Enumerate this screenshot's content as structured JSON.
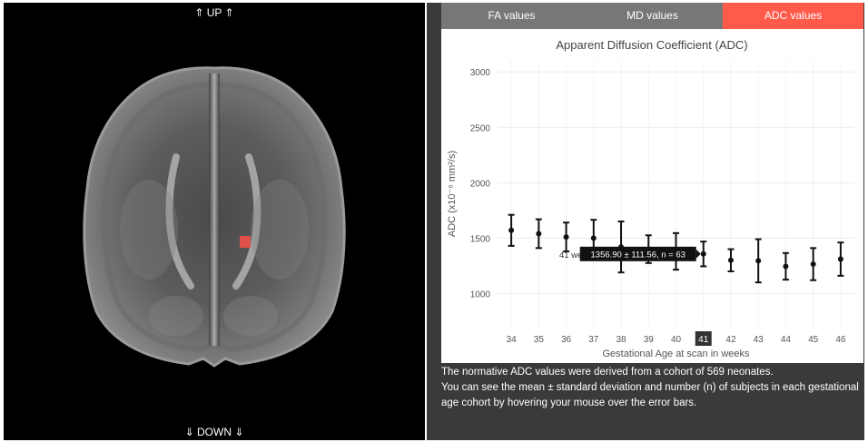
{
  "viewer": {
    "up_label": "⇑ UP ⇑",
    "down_label": "⇓ DOWN ⇓",
    "marker_color": "#e0504a"
  },
  "tabs": [
    {
      "label": "FA values",
      "active": false
    },
    {
      "label": "MD values",
      "active": false
    },
    {
      "label": "ADC values",
      "active": true
    }
  ],
  "colors": {
    "active_tab": "#ff5a4a",
    "inactive_tab": "#777777",
    "panel_bg": "#3a3a3a"
  },
  "chart_data": {
    "type": "scatter",
    "title": "Apparent Diffusion Coefficient (ADC)",
    "xlabel": "Gestational Age at scan in weeks",
    "ylabel": "ADC (x10⁻⁶ mm²/s)",
    "ylim": [
      700,
      3100
    ],
    "yticks": [
      1000,
      1500,
      2000,
      2500,
      3000
    ],
    "x": [
      34,
      35,
      36,
      37,
      38,
      39,
      40,
      41,
      42,
      43,
      44,
      45,
      46
    ],
    "mean": [
      1570,
      1540,
      1510,
      1500,
      1420,
      1400,
      1380,
      1356.9,
      1300,
      1295,
      1245,
      1265,
      1310
    ],
    "sd": [
      140,
      130,
      130,
      165,
      230,
      125,
      165,
      111.56,
      100,
      195,
      120,
      145,
      150
    ],
    "grid": true,
    "hover": {
      "x": 41,
      "axis_label": "41 weeks",
      "tooltip": "1356.90 ± 111.56, n = 63",
      "tick_highlight": "41"
    }
  },
  "description": {
    "line1": "The normative ADC values were derived from a cohort of 569 neonates.",
    "line2": "You can see the mean ± standard deviation and number (n) of subjects in each gestational age cohort by hovering your mouse over the error bars."
  }
}
